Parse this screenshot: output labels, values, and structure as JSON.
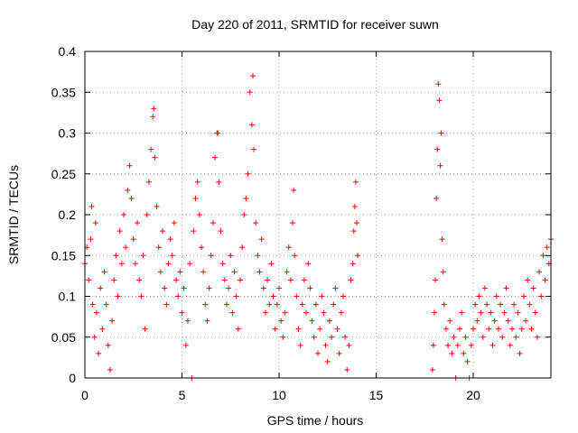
{
  "chart_data": {
    "type": "scatter",
    "title": "Day 220 of 2011, SRMTID for receiver suwn",
    "xlabel": "GPS time / hours",
    "ylabel": "SRMTID / TECUs",
    "xlim": [
      0,
      24
    ],
    "ylim": [
      0,
      0.4
    ],
    "x_ticks": [
      0,
      5,
      10,
      15,
      20
    ],
    "x_tick_labels": [
      "0",
      "5",
      "10",
      "15",
      "20"
    ],
    "y_ticks": [
      0,
      0.05,
      0.1,
      0.15,
      0.2,
      0.25,
      0.3,
      0.35,
      0.4
    ],
    "y_tick_labels": [
      "0",
      "0.05",
      "0.1",
      "0.15",
      "0.2",
      "0.25",
      "0.3",
      "0.35",
      "0.4"
    ],
    "grid": true,
    "marker": "+",
    "color": "#ff0000",
    "series": [
      {
        "name": "SRMTID",
        "points": [
          [
            0.0,
            0.14
          ],
          [
            0.1,
            0.16
          ],
          [
            0.2,
            0.12
          ],
          [
            0.3,
            0.17
          ],
          [
            0.35,
            0.21
          ],
          [
            0.4,
            0.09
          ],
          [
            0.5,
            0.05
          ],
          [
            0.55,
            0.19
          ],
          [
            0.6,
            0.08
          ],
          [
            0.7,
            0.03
          ],
          [
            0.8,
            0.11
          ],
          [
            0.9,
            0.06
          ],
          [
            1.0,
            0.13
          ],
          [
            1.1,
            0.09
          ],
          [
            1.2,
            0.04
          ],
          [
            1.3,
            0.01
          ],
          [
            1.4,
            0.07
          ],
          [
            1.5,
            0.12
          ],
          [
            1.6,
            0.15
          ],
          [
            1.7,
            0.1
          ],
          [
            1.8,
            0.18
          ],
          [
            1.9,
            0.14
          ],
          [
            2.0,
            0.2
          ],
          [
            2.1,
            0.16
          ],
          [
            2.2,
            0.23
          ],
          [
            2.3,
            0.26
          ],
          [
            2.4,
            0.22
          ],
          [
            2.5,
            0.17
          ],
          [
            2.6,
            0.14
          ],
          [
            2.7,
            0.19
          ],
          [
            2.8,
            0.12
          ],
          [
            2.9,
            0.1
          ],
          [
            3.0,
            0.15
          ],
          [
            3.1,
            0.06
          ],
          [
            3.2,
            0.2
          ],
          [
            3.3,
            0.24
          ],
          [
            3.4,
            0.28
          ],
          [
            3.5,
            0.32
          ],
          [
            3.55,
            0.33
          ],
          [
            3.6,
            0.27
          ],
          [
            3.7,
            0.21
          ],
          [
            3.8,
            0.16
          ],
          [
            3.9,
            0.13
          ],
          [
            4.0,
            0.18
          ],
          [
            4.1,
            0.11
          ],
          [
            4.2,
            0.09
          ],
          [
            4.3,
            0.14
          ],
          [
            4.4,
            0.17
          ],
          [
            4.5,
            0.15
          ],
          [
            4.6,
            0.19
          ],
          [
            4.7,
            0.12
          ],
          [
            4.8,
            0.1
          ],
          [
            4.9,
            0.13
          ],
          [
            5.0,
            0.08
          ],
          [
            5.1,
            0.11
          ],
          [
            5.2,
            0.04
          ],
          [
            5.3,
            0.07
          ],
          [
            5.4,
            0.14
          ],
          [
            5.5,
            0.0
          ],
          [
            5.6,
            0.18
          ],
          [
            5.7,
            0.22
          ],
          [
            5.8,
            0.24
          ],
          [
            5.9,
            0.2
          ],
          [
            6.0,
            0.16
          ],
          [
            6.1,
            0.13
          ],
          [
            6.2,
            0.09
          ],
          [
            6.3,
            0.07
          ],
          [
            6.4,
            0.11
          ],
          [
            6.5,
            0.15
          ],
          [
            6.6,
            0.19
          ],
          [
            6.7,
            0.27
          ],
          [
            6.8,
            0.3
          ],
          [
            6.85,
            0.3
          ],
          [
            6.9,
            0.24
          ],
          [
            7.0,
            0.18
          ],
          [
            7.1,
            0.14
          ],
          [
            7.2,
            0.12
          ],
          [
            7.3,
            0.09
          ],
          [
            7.4,
            0.11
          ],
          [
            7.5,
            0.15
          ],
          [
            7.6,
            0.08
          ],
          [
            7.7,
            0.13
          ],
          [
            7.8,
            0.1
          ],
          [
            7.9,
            0.06
          ],
          [
            8.0,
            0.12
          ],
          [
            8.1,
            0.16
          ],
          [
            8.2,
            0.2
          ],
          [
            8.3,
            0.22
          ],
          [
            8.4,
            0.25
          ],
          [
            8.5,
            0.35
          ],
          [
            8.6,
            0.31
          ],
          [
            8.65,
            0.37
          ],
          [
            8.7,
            0.28
          ],
          [
            8.8,
            0.19
          ],
          [
            8.9,
            0.15
          ],
          [
            9.0,
            0.13
          ],
          [
            9.1,
            0.17
          ],
          [
            9.2,
            0.11
          ],
          [
            9.3,
            0.08
          ],
          [
            9.4,
            0.12
          ],
          [
            9.5,
            0.09
          ],
          [
            9.6,
            0.14
          ],
          [
            9.7,
            0.1
          ],
          [
            9.8,
            0.06
          ],
          [
            9.9,
            0.09
          ],
          [
            10.0,
            0.11
          ],
          [
            10.1,
            0.07
          ],
          [
            10.2,
            0.05
          ],
          [
            10.3,
            0.08
          ],
          [
            10.4,
            0.13
          ],
          [
            10.5,
            0.16
          ],
          [
            10.6,
            0.12
          ],
          [
            10.7,
            0.19
          ],
          [
            10.75,
            0.23
          ],
          [
            10.8,
            0.15
          ],
          [
            10.9,
            0.1
          ],
          [
            11.0,
            0.06
          ],
          [
            11.1,
            0.04
          ],
          [
            11.2,
            0.09
          ],
          [
            11.3,
            0.12
          ],
          [
            11.4,
            0.08
          ],
          [
            11.5,
            0.14
          ],
          [
            11.6,
            0.11
          ],
          [
            11.7,
            0.07
          ],
          [
            11.8,
            0.05
          ],
          [
            11.9,
            0.09
          ],
          [
            12.0,
            0.03
          ],
          [
            12.1,
            0.06
          ],
          [
            12.2,
            0.1
          ],
          [
            12.3,
            0.08
          ],
          [
            12.4,
            0.04
          ],
          [
            12.5,
            0.02
          ],
          [
            12.6,
            0.07
          ],
          [
            12.7,
            0.05
          ],
          [
            12.8,
            0.09
          ],
          [
            12.9,
            0.11
          ],
          [
            13.0,
            0.06
          ],
          [
            13.1,
            0.03
          ],
          [
            13.2,
            0.08
          ],
          [
            13.3,
            0.1
          ],
          [
            13.4,
            0.05
          ],
          [
            13.5,
            0.01
          ],
          [
            13.6,
            0.04
          ],
          [
            13.7,
            0.12
          ],
          [
            13.8,
            0.14
          ],
          [
            13.85,
            0.18
          ],
          [
            13.9,
            0.21
          ],
          [
            13.95,
            0.24
          ],
          [
            14.0,
            0.19
          ],
          [
            14.05,
            0.15
          ],
          [
            17.9,
            0.01
          ],
          [
            17.95,
            0.04
          ],
          [
            18.0,
            0.08
          ],
          [
            18.05,
            0.12
          ],
          [
            18.1,
            0.22
          ],
          [
            18.15,
            0.28
          ],
          [
            18.2,
            0.36
          ],
          [
            18.25,
            0.34
          ],
          [
            18.3,
            0.26
          ],
          [
            18.35,
            0.3
          ],
          [
            18.4,
            0.17
          ],
          [
            18.45,
            0.13
          ],
          [
            18.5,
            0.09
          ],
          [
            18.6,
            0.06
          ],
          [
            18.7,
            0.04
          ],
          [
            18.8,
            0.07
          ],
          [
            18.9,
            0.03
          ],
          [
            19.0,
            0.05
          ],
          [
            19.1,
            0.0
          ],
          [
            19.2,
            0.04
          ],
          [
            19.3,
            0.06
          ],
          [
            19.4,
            0.08
          ],
          [
            19.5,
            0.03
          ],
          [
            19.6,
            0.05
          ],
          [
            19.7,
            0.02
          ],
          [
            19.8,
            0.0
          ],
          [
            19.9,
            0.04
          ],
          [
            20.0,
            0.06
          ],
          [
            20.1,
            0.09
          ],
          [
            20.2,
            0.07
          ],
          [
            20.3,
            0.1
          ],
          [
            20.4,
            0.08
          ],
          [
            20.5,
            0.05
          ],
          [
            20.6,
            0.11
          ],
          [
            20.7,
            0.09
          ],
          [
            20.8,
            0.06
          ],
          [
            20.9,
            0.08
          ],
          [
            21.0,
            0.04
          ],
          [
            21.1,
            0.07
          ],
          [
            21.2,
            0.1
          ],
          [
            21.3,
            0.06
          ],
          [
            21.4,
            0.09
          ],
          [
            21.5,
            0.05
          ],
          [
            21.6,
            0.08
          ],
          [
            21.7,
            0.11
          ],
          [
            21.8,
            0.07
          ],
          [
            21.9,
            0.04
          ],
          [
            22.0,
            0.06
          ],
          [
            22.1,
            0.09
          ],
          [
            22.2,
            0.05
          ],
          [
            22.3,
            0.08
          ],
          [
            22.4,
            0.03
          ],
          [
            22.5,
            0.06
          ],
          [
            22.6,
            0.1
          ],
          [
            22.7,
            0.07
          ],
          [
            22.8,
            0.12
          ],
          [
            22.9,
            0.09
          ],
          [
            23.0,
            0.06
          ],
          [
            23.1,
            0.11
          ],
          [
            23.2,
            0.08
          ],
          [
            23.3,
            0.05
          ],
          [
            23.4,
            0.13
          ],
          [
            23.5,
            0.1
          ],
          [
            23.6,
            0.15
          ],
          [
            23.7,
            0.12
          ],
          [
            23.8,
            0.16
          ],
          [
            23.9,
            0.14
          ],
          [
            24.0,
            0.17
          ]
        ]
      }
    ]
  }
}
